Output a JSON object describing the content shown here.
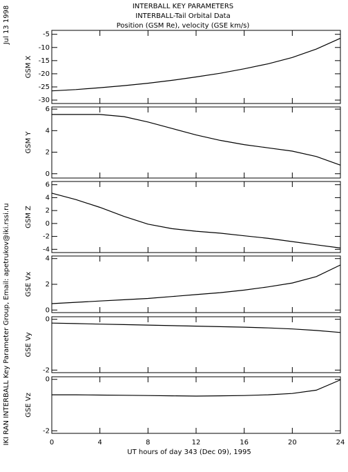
{
  "titles": [
    "INTERBALL KEY PARAMETERS",
    "INTERBALL-Tail Orbital Data",
    "Position (GSM Re), velocity (GSE km/s)"
  ],
  "side_notes": [
    "Jul 13 1998",
    "IKI RAN INTERBALL Key Parameter Group, Email: apetrukov@iki.rssi.ru"
  ],
  "chart_data": [
    {
      "type": "line",
      "ylabel": "GSM X",
      "x": [
        0,
        2,
        4,
        6,
        8,
        10,
        12,
        14,
        16,
        18,
        20,
        22,
        24
      ],
      "values": [
        -26.5,
        -26,
        -25.3,
        -24.5,
        -23.6,
        -22.5,
        -21.2,
        -19.8,
        -18.1,
        -16.2,
        -13.8,
        -10.6,
        -6.5
      ],
      "xlim": [
        0,
        24
      ],
      "xticks": [
        0,
        4,
        8,
        12,
        16,
        20,
        24
      ],
      "ylim": [
        -31.3,
        -3.5
      ],
      "yticks": [
        -30,
        -25,
        -20,
        -15,
        -10,
        -5
      ]
    },
    {
      "type": "line",
      "ylabel": "GSM Y",
      "x": [
        0,
        2,
        4,
        6,
        8,
        10,
        12,
        14,
        16,
        18,
        20,
        22,
        24
      ],
      "values": [
        5.5,
        5.5,
        5.5,
        5.3,
        4.8,
        4.2,
        3.6,
        3.1,
        2.7,
        2.4,
        2.1,
        1.6,
        0.8
      ],
      "xlim": [
        0,
        24
      ],
      "xticks": [
        0,
        4,
        8,
        12,
        16,
        20,
        24
      ],
      "ylim": [
        -0.4,
        6.2
      ],
      "yticks": [
        0,
        2,
        4,
        6
      ]
    },
    {
      "type": "line",
      "ylabel": "GSM Z",
      "x": [
        0,
        2,
        4,
        6,
        8,
        10,
        12,
        14,
        16,
        18,
        20,
        22,
        24
      ],
      "values": [
        4.7,
        3.7,
        2.5,
        1.1,
        -0.1,
        -0.8,
        -1.2,
        -1.5,
        -1.9,
        -2.3,
        -2.8,
        -3.3,
        -3.8
      ],
      "xlim": [
        0,
        24
      ],
      "xticks": [
        0,
        4,
        8,
        12,
        16,
        20,
        24
      ],
      "ylim": [
        -4.5,
        6.5
      ],
      "yticks": [
        -4,
        -2,
        0,
        2,
        4,
        6
      ]
    },
    {
      "type": "line",
      "ylabel": "GSE Vx",
      "x": [
        0,
        2,
        4,
        6,
        8,
        10,
        12,
        14,
        16,
        18,
        20,
        22,
        24
      ],
      "values": [
        0.5,
        0.6,
        0.7,
        0.8,
        0.9,
        1.05,
        1.2,
        1.35,
        1.55,
        1.8,
        2.1,
        2.6,
        3.5
      ],
      "xlim": [
        0,
        24
      ],
      "xticks": [
        0,
        4,
        8,
        12,
        16,
        20,
        24
      ],
      "ylim": [
        -0.2,
        4.2
      ],
      "yticks": [
        0,
        2,
        4
      ]
    },
    {
      "type": "line",
      "ylabel": "GSE Vy",
      "x": [
        0,
        2,
        4,
        6,
        8,
        10,
        12,
        14,
        16,
        18,
        20,
        22,
        24
      ],
      "values": [
        -0.15,
        -0.17,
        -0.19,
        -0.21,
        -0.23,
        -0.25,
        -0.27,
        -0.29,
        -0.31,
        -0.34,
        -0.38,
        -0.44,
        -0.52
      ],
      "xlim": [
        0,
        24
      ],
      "xticks": [
        0,
        4,
        8,
        12,
        16,
        20,
        24
      ],
      "ylim": [
        -2.1,
        0.1
      ],
      "yticks": [
        -2,
        0
      ]
    },
    {
      "type": "line",
      "ylabel": "GSE Vz",
      "xlabel": "UT hours of day 343 (Dec 09), 1995",
      "x": [
        0,
        2,
        4,
        6,
        8,
        10,
        12,
        14,
        16,
        18,
        20,
        22,
        24
      ],
      "values": [
        -0.6,
        -0.6,
        -0.61,
        -0.62,
        -0.63,
        -0.64,
        -0.65,
        -0.64,
        -0.63,
        -0.6,
        -0.55,
        -0.42,
        -0.02
      ],
      "xlim": [
        0,
        24
      ],
      "xticks": [
        0,
        4,
        8,
        12,
        16,
        20,
        24
      ],
      "ylim": [
        -2.1,
        0.1
      ],
      "yticks": [
        -2,
        0
      ]
    }
  ]
}
